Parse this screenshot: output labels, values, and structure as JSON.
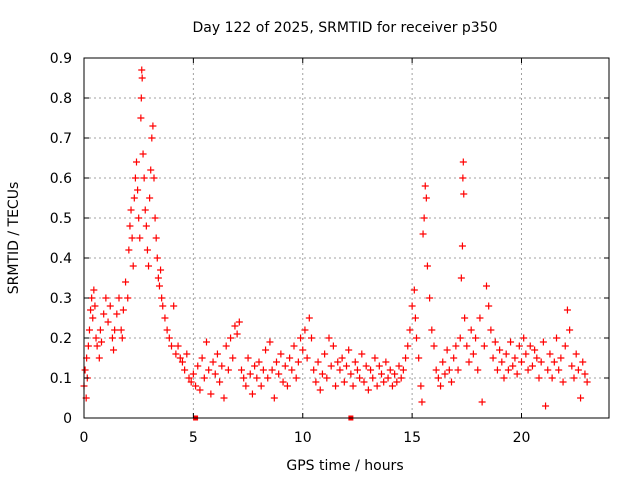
{
  "chart_data": {
    "type": "scatter",
    "title": "Day 122 of 2025, SRMTID for receiver p350",
    "xlabel": "GPS time / hours",
    "ylabel": "SRMTID / TECUs",
    "xlim": [
      0,
      24
    ],
    "ylim": [
      0,
      0.9
    ],
    "xticks": [
      0,
      5,
      10,
      15,
      20
    ],
    "xtick_labels": [
      "0",
      "5",
      "10",
      "15",
      "20"
    ],
    "yticks": [
      0,
      0.1,
      0.2,
      0.3,
      0.4,
      0.5,
      0.6,
      0.7,
      0.8,
      0.9
    ],
    "ytick_labels": [
      "0",
      "0.1",
      "0.2",
      "0.3",
      "0.4",
      "0.5",
      "0.6",
      "0.7",
      "0.8",
      "0.9"
    ],
    "grid": true,
    "marker": "+",
    "color": "#ff0000",
    "square_markers": [
      [
        5.1,
        0.0
      ],
      [
        12.2,
        0.0
      ]
    ],
    "series": [
      {
        "name": "SRMTID",
        "points": [
          [
            0.0,
            0.08
          ],
          [
            0.05,
            0.12
          ],
          [
            0.1,
            0.05
          ],
          [
            0.12,
            0.15
          ],
          [
            0.15,
            0.1
          ],
          [
            0.2,
            0.18
          ],
          [
            0.25,
            0.22
          ],
          [
            0.3,
            0.27
          ],
          [
            0.35,
            0.3
          ],
          [
            0.4,
            0.25
          ],
          [
            0.45,
            0.32
          ],
          [
            0.5,
            0.28
          ],
          [
            0.55,
            0.2
          ],
          [
            0.6,
            0.18
          ],
          [
            0.7,
            0.15
          ],
          [
            0.75,
            0.22
          ],
          [
            0.8,
            0.19
          ],
          [
            0.9,
            0.26
          ],
          [
            1.0,
            0.3
          ],
          [
            1.1,
            0.24
          ],
          [
            1.2,
            0.28
          ],
          [
            1.3,
            0.2
          ],
          [
            1.35,
            0.17
          ],
          [
            1.4,
            0.22
          ],
          [
            1.5,
            0.26
          ],
          [
            1.6,
            0.3
          ],
          [
            1.7,
            0.22
          ],
          [
            1.75,
            0.2
          ],
          [
            1.8,
            0.27
          ],
          [
            1.9,
            0.34
          ],
          [
            2.0,
            0.3
          ],
          [
            2.05,
            0.42
          ],
          [
            2.1,
            0.48
          ],
          [
            2.15,
            0.52
          ],
          [
            2.2,
            0.45
          ],
          [
            2.25,
            0.38
          ],
          [
            2.3,
            0.55
          ],
          [
            2.35,
            0.6
          ],
          [
            2.4,
            0.64
          ],
          [
            2.45,
            0.57
          ],
          [
            2.5,
            0.5
          ],
          [
            2.55,
            0.45
          ],
          [
            2.6,
            0.75
          ],
          [
            2.62,
            0.8
          ],
          [
            2.64,
            0.87
          ],
          [
            2.66,
            0.85
          ],
          [
            2.7,
            0.66
          ],
          [
            2.75,
            0.6
          ],
          [
            2.8,
            0.52
          ],
          [
            2.85,
            0.48
          ],
          [
            2.9,
            0.42
          ],
          [
            2.95,
            0.38
          ],
          [
            3.0,
            0.55
          ],
          [
            3.05,
            0.62
          ],
          [
            3.1,
            0.7
          ],
          [
            3.15,
            0.73
          ],
          [
            3.2,
            0.6
          ],
          [
            3.25,
            0.5
          ],
          [
            3.3,
            0.45
          ],
          [
            3.35,
            0.4
          ],
          [
            3.4,
            0.35
          ],
          [
            3.45,
            0.33
          ],
          [
            3.5,
            0.37
          ],
          [
            3.55,
            0.3
          ],
          [
            3.6,
            0.28
          ],
          [
            3.7,
            0.25
          ],
          [
            3.8,
            0.22
          ],
          [
            3.9,
            0.2
          ],
          [
            4.0,
            0.18
          ],
          [
            4.1,
            0.28
          ],
          [
            4.2,
            0.16
          ],
          [
            4.3,
            0.18
          ],
          [
            4.4,
            0.15
          ],
          [
            4.5,
            0.14
          ],
          [
            4.6,
            0.12
          ],
          [
            4.7,
            0.16
          ],
          [
            4.8,
            0.1
          ],
          [
            4.9,
            0.09
          ],
          [
            5.0,
            0.11
          ],
          [
            5.1,
            0.08
          ],
          [
            5.2,
            0.13
          ],
          [
            5.3,
            0.07
          ],
          [
            5.4,
            0.15
          ],
          [
            5.5,
            0.1
          ],
          [
            5.6,
            0.19
          ],
          [
            5.7,
            0.12
          ],
          [
            5.8,
            0.06
          ],
          [
            5.9,
            0.14
          ],
          [
            6.0,
            0.11
          ],
          [
            6.1,
            0.16
          ],
          [
            6.2,
            0.09
          ],
          [
            6.3,
            0.13
          ],
          [
            6.4,
            0.05
          ],
          [
            6.5,
            0.18
          ],
          [
            6.6,
            0.12
          ],
          [
            6.7,
            0.2
          ],
          [
            6.8,
            0.15
          ],
          [
            6.9,
            0.23
          ],
          [
            7.0,
            0.21
          ],
          [
            7.1,
            0.24
          ],
          [
            7.2,
            0.12
          ],
          [
            7.3,
            0.1
          ],
          [
            7.4,
            0.08
          ],
          [
            7.5,
            0.15
          ],
          [
            7.6,
            0.11
          ],
          [
            7.7,
            0.06
          ],
          [
            7.8,
            0.13
          ],
          [
            7.9,
            0.1
          ],
          [
            8.0,
            0.14
          ],
          [
            8.1,
            0.08
          ],
          [
            8.2,
            0.12
          ],
          [
            8.3,
            0.17
          ],
          [
            8.4,
            0.1
          ],
          [
            8.5,
            0.19
          ],
          [
            8.6,
            0.12
          ],
          [
            8.7,
            0.05
          ],
          [
            8.8,
            0.14
          ],
          [
            8.9,
            0.11
          ],
          [
            9.0,
            0.16
          ],
          [
            9.1,
            0.09
          ],
          [
            9.2,
            0.13
          ],
          [
            9.3,
            0.08
          ],
          [
            9.4,
            0.15
          ],
          [
            9.5,
            0.12
          ],
          [
            9.6,
            0.18
          ],
          [
            9.7,
            0.1
          ],
          [
            9.8,
            0.14
          ],
          [
            9.9,
            0.2
          ],
          [
            10.0,
            0.17
          ],
          [
            10.1,
            0.22
          ],
          [
            10.2,
            0.15
          ],
          [
            10.3,
            0.25
          ],
          [
            10.4,
            0.2
          ],
          [
            10.5,
            0.12
          ],
          [
            10.6,
            0.09
          ],
          [
            10.7,
            0.14
          ],
          [
            10.8,
            0.07
          ],
          [
            10.9,
            0.11
          ],
          [
            11.0,
            0.16
          ],
          [
            11.1,
            0.1
          ],
          [
            11.2,
            0.2
          ],
          [
            11.3,
            0.13
          ],
          [
            11.4,
            0.18
          ],
          [
            11.5,
            0.08
          ],
          [
            11.6,
            0.14
          ],
          [
            11.7,
            0.12
          ],
          [
            11.8,
            0.15
          ],
          [
            11.9,
            0.09
          ],
          [
            12.0,
            0.13
          ],
          [
            12.1,
            0.17
          ],
          [
            12.2,
            0.11
          ],
          [
            12.3,
            0.08
          ],
          [
            12.4,
            0.14
          ],
          [
            12.5,
            0.12
          ],
          [
            12.6,
            0.1
          ],
          [
            12.7,
            0.16
          ],
          [
            12.8,
            0.09
          ],
          [
            12.9,
            0.13
          ],
          [
            13.0,
            0.07
          ],
          [
            13.1,
            0.12
          ],
          [
            13.2,
            0.1
          ],
          [
            13.3,
            0.15
          ],
          [
            13.4,
            0.08
          ],
          [
            13.5,
            0.13
          ],
          [
            13.6,
            0.11
          ],
          [
            13.7,
            0.09
          ],
          [
            13.8,
            0.14
          ],
          [
            13.9,
            0.1
          ],
          [
            14.0,
            0.12
          ],
          [
            14.1,
            0.08
          ],
          [
            14.2,
            0.11
          ],
          [
            14.3,
            0.09
          ],
          [
            14.4,
            0.13
          ],
          [
            14.5,
            0.1
          ],
          [
            14.6,
            0.12
          ],
          [
            14.7,
            0.15
          ],
          [
            14.8,
            0.18
          ],
          [
            14.9,
            0.22
          ],
          [
            15.0,
            0.28
          ],
          [
            15.1,
            0.32
          ],
          [
            15.15,
            0.25
          ],
          [
            15.2,
            0.2
          ],
          [
            15.3,
            0.15
          ],
          [
            15.4,
            0.08
          ],
          [
            15.45,
            0.04
          ],
          [
            15.5,
            0.46
          ],
          [
            15.55,
            0.5
          ],
          [
            15.6,
            0.58
          ],
          [
            15.65,
            0.55
          ],
          [
            15.7,
            0.38
          ],
          [
            15.8,
            0.3
          ],
          [
            15.9,
            0.22
          ],
          [
            16.0,
            0.18
          ],
          [
            16.1,
            0.12
          ],
          [
            16.2,
            0.1
          ],
          [
            16.3,
            0.08
          ],
          [
            16.4,
            0.14
          ],
          [
            16.5,
            0.11
          ],
          [
            16.6,
            0.17
          ],
          [
            16.7,
            0.12
          ],
          [
            16.8,
            0.09
          ],
          [
            16.9,
            0.15
          ],
          [
            17.0,
            0.18
          ],
          [
            17.1,
            0.12
          ],
          [
            17.2,
            0.2
          ],
          [
            17.25,
            0.35
          ],
          [
            17.3,
            0.43
          ],
          [
            17.32,
            0.6
          ],
          [
            17.34,
            0.64
          ],
          [
            17.36,
            0.56
          ],
          [
            17.4,
            0.25
          ],
          [
            17.5,
            0.18
          ],
          [
            17.6,
            0.14
          ],
          [
            17.7,
            0.22
          ],
          [
            17.8,
            0.16
          ],
          [
            17.9,
            0.2
          ],
          [
            18.0,
            0.12
          ],
          [
            18.1,
            0.25
          ],
          [
            18.2,
            0.04
          ],
          [
            18.3,
            0.18
          ],
          [
            18.4,
            0.33
          ],
          [
            18.5,
            0.28
          ],
          [
            18.6,
            0.22
          ],
          [
            18.7,
            0.15
          ],
          [
            18.8,
            0.19
          ],
          [
            18.9,
            0.12
          ],
          [
            19.0,
            0.17
          ],
          [
            19.1,
            0.14
          ],
          [
            19.2,
            0.1
          ],
          [
            19.3,
            0.16
          ],
          [
            19.4,
            0.12
          ],
          [
            19.5,
            0.19
          ],
          [
            19.6,
            0.13
          ],
          [
            19.7,
            0.15
          ],
          [
            19.8,
            0.11
          ],
          [
            19.9,
            0.18
          ],
          [
            20.0,
            0.14
          ],
          [
            20.1,
            0.2
          ],
          [
            20.2,
            0.16
          ],
          [
            20.3,
            0.12
          ],
          [
            20.4,
            0.18
          ],
          [
            20.5,
            0.13
          ],
          [
            20.6,
            0.17
          ],
          [
            20.7,
            0.15
          ],
          [
            20.8,
            0.1
          ],
          [
            20.9,
            0.14
          ],
          [
            21.0,
            0.19
          ],
          [
            21.1,
            0.03
          ],
          [
            21.2,
            0.12
          ],
          [
            21.3,
            0.16
          ],
          [
            21.4,
            0.1
          ],
          [
            21.5,
            0.14
          ],
          [
            21.6,
            0.2
          ],
          [
            21.7,
            0.12
          ],
          [
            21.8,
            0.15
          ],
          [
            21.9,
            0.09
          ],
          [
            22.0,
            0.18
          ],
          [
            22.1,
            0.27
          ],
          [
            22.2,
            0.22
          ],
          [
            22.3,
            0.13
          ],
          [
            22.4,
            0.1
          ],
          [
            22.5,
            0.16
          ],
          [
            22.6,
            0.12
          ],
          [
            22.7,
            0.05
          ],
          [
            22.8,
            0.14
          ],
          [
            22.9,
            0.11
          ],
          [
            23.0,
            0.09
          ]
        ]
      }
    ]
  }
}
